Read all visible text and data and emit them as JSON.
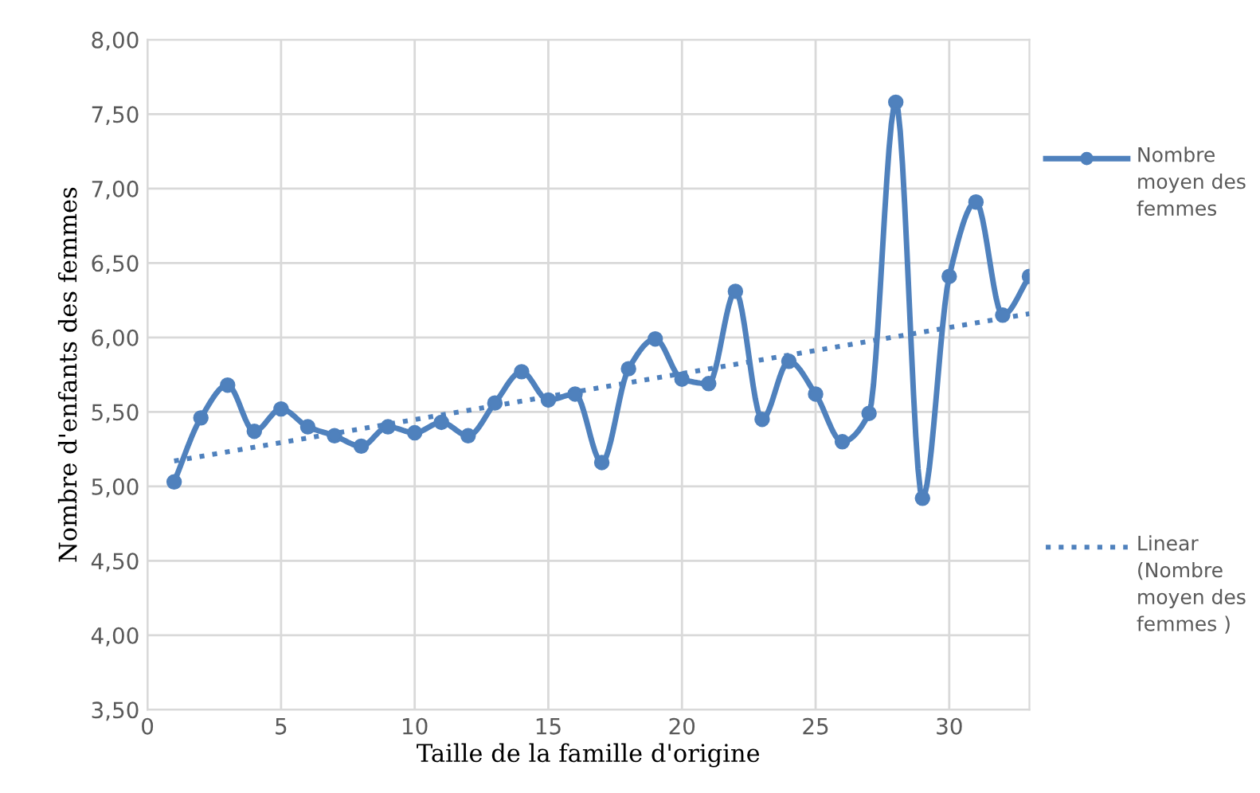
{
  "chart_data": {
    "type": "line",
    "xlabel": "Taille de la famille d'origine",
    "ylabel": "Nombre d'enfants des femmes",
    "x": [
      1,
      2,
      3,
      4,
      5,
      6,
      7,
      8,
      9,
      10,
      11,
      12,
      13,
      14,
      15,
      16,
      17,
      18,
      19,
      20,
      21,
      22,
      23,
      24,
      25,
      26,
      27,
      28,
      29,
      30,
      31,
      32,
      33
    ],
    "series": [
      {
        "name": "Nombre moyen des femmes",
        "color": "#4f81bd",
        "marker": "circle",
        "line_style": "solid",
        "values": [
          5.03,
          5.46,
          5.68,
          5.37,
          5.52,
          5.4,
          5.34,
          5.27,
          5.4,
          5.36,
          5.43,
          5.34,
          5.56,
          5.77,
          5.58,
          5.62,
          5.16,
          5.79,
          5.99,
          5.72,
          5.69,
          6.31,
          5.45,
          5.84,
          5.62,
          5.3,
          5.49,
          7.58,
          4.92,
          6.41,
          6.91,
          6.15,
          6.41
        ]
      },
      {
        "name": "Linear (Nombre moyen des femmes )",
        "type": "line",
        "color": "#4f81bd",
        "marker": "none",
        "line_style": "dotted",
        "x": [
          1,
          33
        ],
        "values": [
          5.17,
          6.16
        ]
      }
    ],
    "xlim": [
      0,
      33
    ],
    "xticks": [
      0,
      5,
      10,
      15,
      20,
      25,
      30
    ],
    "ylim": [
      3.5,
      8.0
    ],
    "yticks": [
      {
        "value": 3.5,
        "label": "3,50"
      },
      {
        "value": 4.0,
        "label": "4,00"
      },
      {
        "value": 4.5,
        "label": "4,50"
      },
      {
        "value": 5.0,
        "label": "5,00"
      },
      {
        "value": 5.5,
        "label": "5,50"
      },
      {
        "value": 6.0,
        "label": "6,00"
      },
      {
        "value": 6.5,
        "label": "6,50"
      },
      {
        "value": 7.0,
        "label": "7,00"
      },
      {
        "value": 7.5,
        "label": "7,50"
      },
      {
        "value": 8.0,
        "label": "8,00"
      }
    ],
    "grid": true,
    "legend": "right"
  }
}
